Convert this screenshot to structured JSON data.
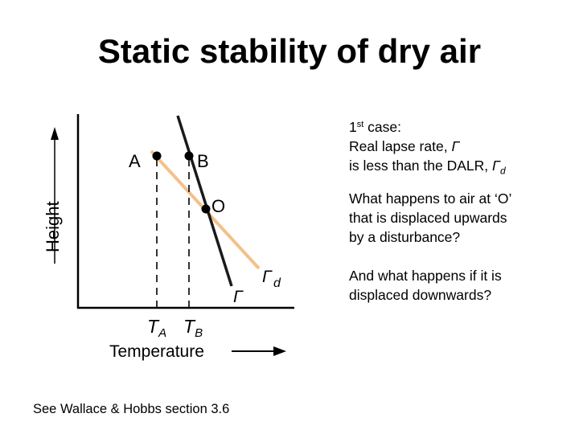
{
  "slide": {
    "title": "Static stability of dry air",
    "footer": "See Wallace & Hobbs section 3.6"
  },
  "diagram": {
    "y_axis_label": "Height",
    "x_axis_label": "Temperature",
    "points": {
      "a": "A",
      "b": "B",
      "o": "O"
    },
    "temp_labels": {
      "ta_base": "T",
      "ta_sub": "A",
      "tb_base": "T",
      "tb_sub": "B"
    },
    "lines": {
      "dalr_base": "Γ",
      "dalr_sub": "d",
      "real": "Γ"
    },
    "colors": {
      "dalr_line": "#f4c08a",
      "real_line": "#1a1a1a",
      "axis": "#000000"
    }
  },
  "text": {
    "case_number": "1",
    "case_sup": "st",
    "case_rest": " case:",
    "line2_prefix": "Real lapse rate, ",
    "line2_gamma": "Γ",
    "line3_prefix": "is less than the DALR, ",
    "line3_gamma": "Γ",
    "line3_sub": "d",
    "q1": [
      "What happens to air at ‘O’",
      "that is displaced upwards",
      "by a disturbance?"
    ],
    "q2": [
      "And what happens if it is",
      "displaced downwards?"
    ]
  }
}
